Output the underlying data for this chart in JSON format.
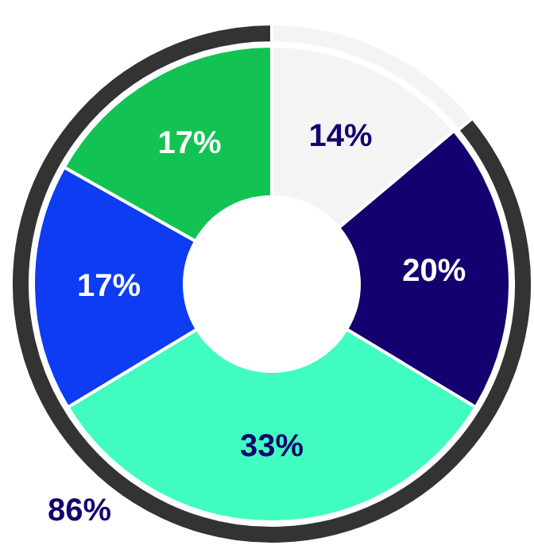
{
  "chart_data": [
    {
      "type": "donut",
      "values": [
        14,
        20,
        33,
        17,
        17
      ],
      "value_labels": [
        "14%",
        "20%",
        "33%",
        "17%",
        "17%"
      ],
      "colors": [
        "#f4f4f4",
        "#14006e",
        "#40fcc0",
        "#0d3cf2",
        "#12c354"
      ]
    },
    {
      "type": "donut",
      "values": [
        14,
        86
      ],
      "value_labels": [
        null,
        "86%"
      ],
      "colors": [
        "#f4f4f4",
        "#333333"
      ]
    }
  ]
}
